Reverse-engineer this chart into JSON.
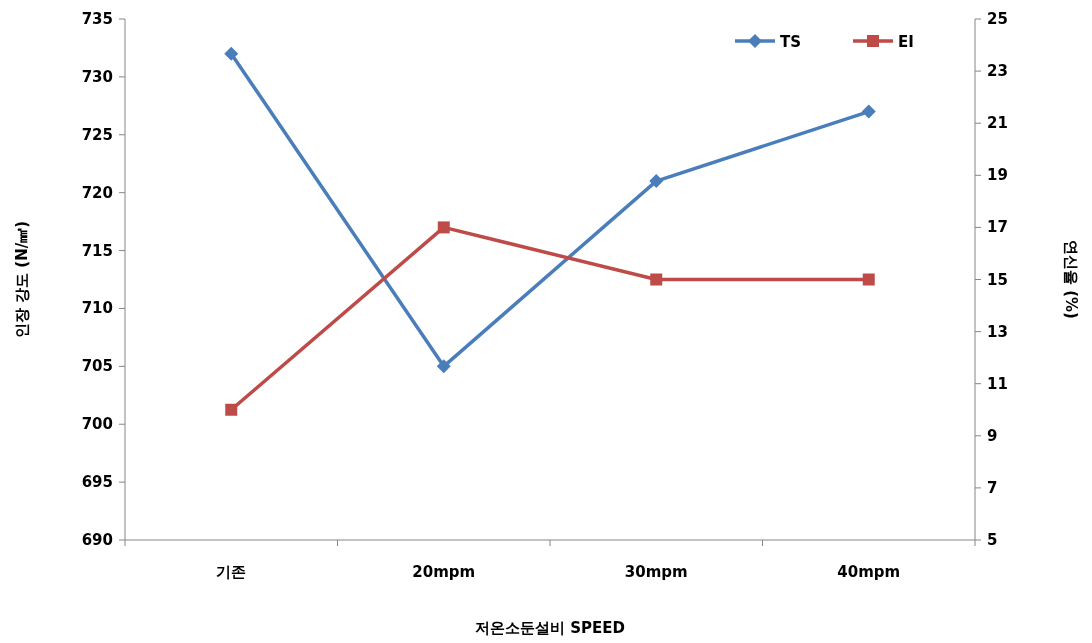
{
  "chart_data": {
    "type": "line",
    "xlabel": "저온소둔설비 SPEED",
    "ylabel": "인장 강도 (N/㎟)",
    "y2label": "연신율 (%)",
    "categories": [
      "기존",
      "20mpm",
      "30mpm",
      "40mpm"
    ],
    "series": [
      {
        "name": "TS",
        "color": "#4a7ebb",
        "values": [
          732,
          705,
          721,
          727
        ],
        "marker": "diamond"
      },
      {
        "name": "EI",
        "color": "#be4b48",
        "values": [
          10,
          17,
          15,
          15
        ],
        "axis": "y2",
        "marker": "square"
      }
    ],
    "ylim": [
      690,
      735
    ],
    "yticks": [
      690,
      695,
      700,
      705,
      710,
      715,
      720,
      725,
      730,
      735
    ],
    "y2lim": [
      5,
      25
    ],
    "y2ticks": [
      5,
      7,
      9,
      11,
      13,
      15,
      17,
      19,
      21,
      23,
      25
    ],
    "grid": false,
    "legend": "top right",
    "line_style": "solid"
  }
}
